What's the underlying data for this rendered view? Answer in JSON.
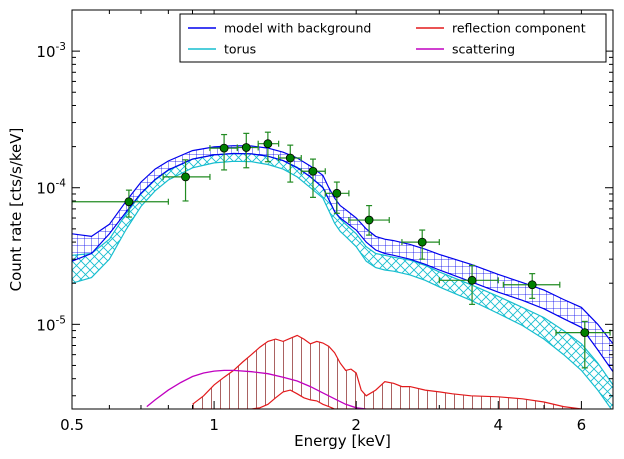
{
  "chart_data": {
    "type": "line",
    "xlabel": "Energy [keV]",
    "ylabel": "Count rate [cts/s/keV]",
    "xscale": "log",
    "yscale": "log",
    "xlim": [
      0.5,
      7.0
    ],
    "ylim": [
      2.4e-06,
      0.002
    ],
    "xticks": [
      {
        "value": 0.5,
        "label": "0.5"
      },
      {
        "value": 1,
        "label": "1"
      },
      {
        "value": 2,
        "label": "2"
      },
      {
        "value": 4,
        "label": "4"
      },
      {
        "value": 6,
        "label": "6"
      }
    ],
    "yticks": [
      {
        "value": 1e-05,
        "base": "10",
        "exp": "-5"
      },
      {
        "value": 0.0001,
        "base": "10",
        "exp": "-4"
      },
      {
        "value": 0.001,
        "base": "10",
        "exp": "-3"
      }
    ],
    "legend": {
      "position": "top-right",
      "columns": 2,
      "entries": [
        {
          "label": "model with background",
          "color": "#0000ee"
        },
        {
          "label": "reflection component",
          "color": "#e31a1c"
        },
        {
          "label": "torus",
          "color": "#17becf"
        },
        {
          "label": "scattering",
          "color": "#c000c0"
        }
      ]
    },
    "series": [
      {
        "name": "model with background",
        "color": "#0000ee",
        "hatch": "grid",
        "x": [
          0.5,
          0.55,
          0.6,
          0.65,
          0.7,
          0.75,
          0.8,
          0.9,
          1.0,
          1.1,
          1.2,
          1.3,
          1.4,
          1.5,
          1.6,
          1.7,
          1.75,
          1.8,
          1.85,
          1.9,
          2.0,
          2.1,
          2.2,
          2.3,
          2.4,
          2.6,
          2.8,
          3.0,
          3.5,
          4.0,
          4.5,
          5.0,
          5.5,
          6.0,
          6.5,
          7.0
        ],
        "lower": [
          2.9e-05,
          3.3e-05,
          4.6e-05,
          6.6e-05,
          9.1e-05,
          0.000115,
          0.000135,
          0.000162,
          0.000174,
          0.000178,
          0.000177,
          0.00017,
          0.000158,
          0.00014,
          0.00012,
          0.0001,
          8.2e-05,
          6.7e-05,
          6e-05,
          5.6e-05,
          4.9e-05,
          4e-05,
          3.5e-05,
          3.3e-05,
          3.2e-05,
          3e-05,
          2.75e-05,
          2.5e-05,
          2.05e-05,
          1.72e-05,
          1.5e-05,
          1.3e-05,
          1.1e-05,
          9.5e-06,
          6.5e-06,
          4.5e-06
        ],
        "upper": [
          4.6e-05,
          4.4e-05,
          5.4e-05,
          7.9e-05,
          0.00011,
          0.000137,
          0.000157,
          0.000187,
          0.000199,
          0.000203,
          0.000202,
          0.000195,
          0.000182,
          0.000165,
          0.000144,
          0.000123,
          0.0001,
          8.4e-05,
          7.4e-05,
          6.9e-05,
          6e-05,
          5e-05,
          4.4e-05,
          4.2e-05,
          4.1e-05,
          3.85e-05,
          3.55e-05,
          3.25e-05,
          2.75e-05,
          2.32e-05,
          2.02e-05,
          1.78e-05,
          1.52e-05,
          1.33e-05,
          1e-05,
          7.2e-06
        ]
      },
      {
        "name": "torus",
        "color": "#17becf",
        "hatch": "crosshatch",
        "x": [
          0.5,
          0.55,
          0.6,
          0.65,
          0.7,
          0.75,
          0.8,
          0.9,
          1.0,
          1.1,
          1.2,
          1.3,
          1.4,
          1.5,
          1.6,
          1.7,
          1.75,
          1.8,
          1.85,
          1.9,
          2.0,
          2.1,
          2.2,
          2.3,
          2.4,
          2.6,
          2.8,
          3.0,
          3.5,
          4.0,
          4.5,
          5.0,
          5.5,
          6.0,
          6.5,
          7.0
        ],
        "lower": [
          2e-05,
          2.2e-05,
          3e-05,
          4.9e-05,
          7.3e-05,
          9.5e-05,
          0.000114,
          0.00014,
          0.000152,
          0.000156,
          0.000155,
          0.000148,
          0.000137,
          0.00012,
          0.0001,
          8.4e-05,
          6.8e-05,
          5.5e-05,
          4.8e-05,
          4.4e-05,
          3.7e-05,
          2.9e-05,
          2.6e-05,
          2.5e-05,
          2.45e-05,
          2.3e-05,
          2.1e-05,
          1.88e-05,
          1.5e-05,
          1.2e-05,
          9.8e-06,
          7.8e-06,
          6e-06,
          4.6e-06,
          3.3e-06,
          2.3e-06
        ],
        "upper": [
          3.2e-05,
          3.3e-05,
          4.2e-05,
          6.4e-05,
          9e-05,
          0.000114,
          0.000134,
          0.000162,
          0.000174,
          0.000178,
          0.000177,
          0.00017,
          0.000158,
          0.000141,
          0.00012,
          0.000101,
          8.2e-05,
          6.7e-05,
          5.9e-05,
          5.4e-05,
          4.6e-05,
          3.7e-05,
          3.3e-05,
          3.2e-05,
          3.1e-05,
          2.95e-05,
          2.7e-05,
          2.42e-05,
          1.95e-05,
          1.6e-05,
          1.33e-05,
          1.12e-05,
          9e-06,
          7.2e-06,
          5.2e-06,
          3.6e-06
        ]
      },
      {
        "name": "reflection component",
        "color": "#e31a1c",
        "hatch": "vertical",
        "x": [
          0.9,
          0.95,
          1.0,
          1.05,
          1.1,
          1.15,
          1.2,
          1.25,
          1.3,
          1.35,
          1.4,
          1.45,
          1.5,
          1.55,
          1.6,
          1.65,
          1.7,
          1.75,
          1.8,
          1.85,
          1.9,
          1.95,
          2.0,
          2.05,
          2.1,
          2.2,
          2.3,
          2.4,
          2.5,
          2.6,
          2.8,
          3.0,
          3.2,
          3.5,
          4.0,
          4.5,
          5.0,
          5.5,
          6.0
        ],
        "lower": [
          2.4e-06,
          2.4e-06,
          2.4e-06,
          2.4e-06,
          2.4e-06,
          2.4e-06,
          2.4e-06,
          2.45e-06,
          2.6e-06,
          2.9e-06,
          3.2e-06,
          3.3e-06,
          3.1e-06,
          2.9e-06,
          2.8e-06,
          2.75e-06,
          2.6e-06,
          2.5e-06,
          2.4e-06,
          2.4e-06,
          2.4e-06,
          2.4e-06,
          2.4e-06,
          2.4e-06,
          2.4e-06,
          2.4e-06,
          2.4e-06,
          2.4e-06,
          2.4e-06,
          2.4e-06,
          2.4e-06,
          2.4e-06,
          2.4e-06,
          2.4e-06,
          2.4e-06,
          2.4e-06,
          2.4e-06,
          2.4e-06,
          2.4e-06
        ],
        "upper": [
          2.6e-06,
          3e-06,
          3.6e-06,
          4.1e-06,
          4.6e-06,
          5.3e-06,
          6e-06,
          6.8e-06,
          7.5e-06,
          7.8e-06,
          7.5e-06,
          7.9e-06,
          8.3e-06,
          7.8e-06,
          7.2e-06,
          7.5e-06,
          7.3e-06,
          6.9e-06,
          6.2e-06,
          5.2e-06,
          4.6e-06,
          4.7e-06,
          4.4e-06,
          3.3e-06,
          3e-06,
          3.3e-06,
          3.8e-06,
          3.7e-06,
          3.5e-06,
          3.5e-06,
          3.3e-06,
          3.2e-06,
          3.1e-06,
          3e-06,
          2.95e-06,
          2.85e-06,
          2.7e-06,
          2.5e-06,
          2.4e-06
        ]
      },
      {
        "name": "scattering",
        "color": "#c000c0",
        "hatch": "none",
        "x": [
          0.72,
          0.75,
          0.8,
          0.85,
          0.9,
          0.95,
          1.0,
          1.05,
          1.1,
          1.2,
          1.3,
          1.4,
          1.5,
          1.6,
          1.7,
          1.8,
          1.9,
          2.0,
          2.1
        ],
        "values": [
          2.5e-06,
          2.8e-06,
          3.3e-06,
          3.75e-06,
          4.15e-06,
          4.4e-06,
          4.55e-06,
          4.6e-06,
          4.6e-06,
          4.5e-06,
          4.35e-06,
          4.1e-06,
          3.85e-06,
          3.5e-06,
          3.15e-06,
          2.85e-06,
          2.6e-06,
          2.45e-06,
          2.4e-06
        ]
      },
      {
        "name": "data",
        "color": "#006400",
        "points": [
          {
            "x": 0.66,
            "y": 7.9e-05,
            "xlo": 0.5,
            "xhi": 0.8,
            "ylo": 6.1e-05,
            "yhi": 9.6e-05
          },
          {
            "x": 0.87,
            "y": 0.00012,
            "xlo": 0.78,
            "xhi": 0.98,
            "ylo": 8e-05,
            "yhi": 0.00016
          },
          {
            "x": 1.05,
            "y": 0.000195,
            "xlo": 0.98,
            "xhi": 1.12,
            "ylo": 0.000135,
            "yhi": 0.000245
          },
          {
            "x": 1.17,
            "y": 0.000197,
            "xlo": 1.12,
            "xhi": 1.24,
            "ylo": 0.00014,
            "yhi": 0.00025
          },
          {
            "x": 1.3,
            "y": 0.00021,
            "xlo": 1.24,
            "xhi": 1.37,
            "ylo": 0.000155,
            "yhi": 0.000255
          },
          {
            "x": 1.45,
            "y": 0.000165,
            "xlo": 1.37,
            "xhi": 1.53,
            "ylo": 0.00011,
            "yhi": 0.000205
          },
          {
            "x": 1.62,
            "y": 0.000132,
            "xlo": 1.53,
            "xhi": 1.72,
            "ylo": 8.5e-05,
            "yhi": 0.000162
          },
          {
            "x": 1.82,
            "y": 9.1e-05,
            "xlo": 1.72,
            "xhi": 1.93,
            "ylo": 6.5e-05,
            "yhi": 0.00011
          },
          {
            "x": 2.13,
            "y": 5.8e-05,
            "xlo": 1.93,
            "xhi": 2.35,
            "ylo": 4.5e-05,
            "yhi": 7.4e-05
          },
          {
            "x": 2.76,
            "y": 4e-05,
            "xlo": 2.5,
            "xhi": 3.0,
            "ylo": 3e-05,
            "yhi": 4.9e-05
          },
          {
            "x": 3.52,
            "y": 2.1e-05,
            "xlo": 3.0,
            "xhi": 4.0,
            "ylo": 1.4e-05,
            "yhi": 2.7e-05
          },
          {
            "x": 4.72,
            "y": 1.95e-05,
            "xlo": 4.1,
            "xhi": 5.4,
            "ylo": 1.55e-05,
            "yhi": 2.35e-05
          },
          {
            "x": 6.1,
            "y": 8.7e-06,
            "xlo": 5.3,
            "xhi": 6.9,
            "ylo": 4.8e-06,
            "yhi": 1.05e-05
          }
        ]
      }
    ]
  }
}
